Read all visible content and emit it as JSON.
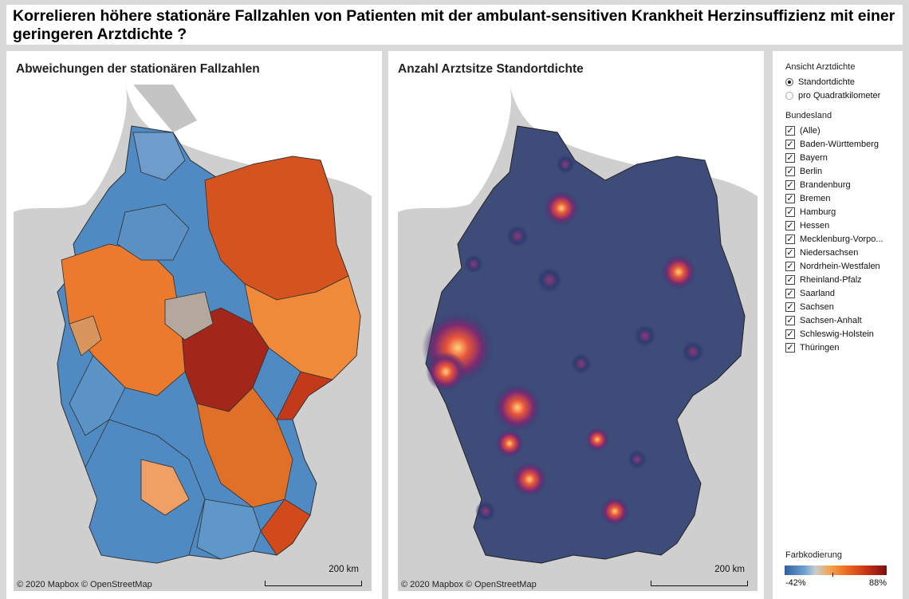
{
  "title": "Korrelieren höhere stationäre Fallzahlen von Patienten mit der ambulant-sensitiven Krankheit Herzinsuffizienz mit einer geringeren Arztdichte ?",
  "left_panel": {
    "title": "Abweichungen der stationären Fallzahlen",
    "attribution": "© 2020 Mapbox © OpenStreetMap",
    "scale": "200 km"
  },
  "right_panel": {
    "title": "Anzahl Arztsitze Standortdichte",
    "attribution": "© 2020 Mapbox © OpenStreetMap",
    "scale": "200 km"
  },
  "filters": {
    "view_label": "Ansicht Arztdichte",
    "view_options": [
      {
        "label": "Standortdichte",
        "selected": true
      },
      {
        "label": "pro Quadratkilometer",
        "selected": false
      }
    ],
    "state_label": "Bundesland",
    "states": [
      {
        "label": "(Alle)",
        "checked": true
      },
      {
        "label": "Baden-Württemberg",
        "checked": true
      },
      {
        "label": "Bayern",
        "checked": true
      },
      {
        "label": "Berlin",
        "checked": true
      },
      {
        "label": "Brandenburg",
        "checked": true
      },
      {
        "label": "Bremen",
        "checked": true
      },
      {
        "label": "Hamburg",
        "checked": true
      },
      {
        "label": "Hessen",
        "checked": true
      },
      {
        "label": "Mecklenburg-Vorpo...",
        "checked": true
      },
      {
        "label": "Niedersachsen",
        "checked": true
      },
      {
        "label": "Nordrhein-Westfalen",
        "checked": true
      },
      {
        "label": "Rheinland-Pfalz",
        "checked": true
      },
      {
        "label": "Saarland",
        "checked": true
      },
      {
        "label": "Sachsen",
        "checked": true
      },
      {
        "label": "Sachsen-Anhalt",
        "checked": true
      },
      {
        "label": "Schleswig-Holstein",
        "checked": true
      },
      {
        "label": "Thüringen",
        "checked": true
      }
    ]
  },
  "legend": {
    "title": "Farbkodierung",
    "min_label": "-42%",
    "max_label": "88%"
  },
  "colors": {
    "blue": "#4a86c0",
    "orange": "#ef7f2c",
    "dark_red": "#8b1a12",
    "heat_bg": "#3b4a78"
  }
}
